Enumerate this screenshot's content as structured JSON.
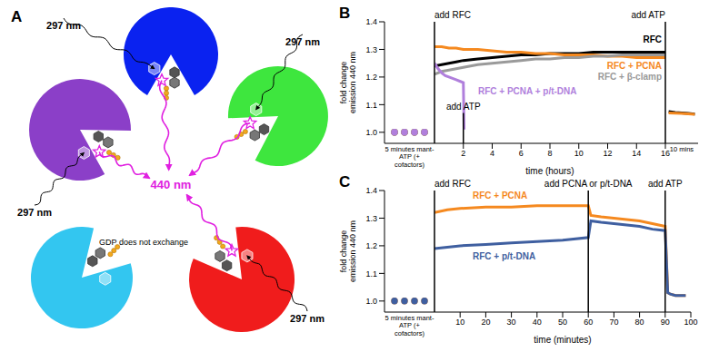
{
  "diagram": {
    "panel": "A",
    "emission": "440 nm",
    "subunits": [
      {
        "color": "#8b3fc8",
        "excitation": "297 nm"
      },
      {
        "color": "#0a22f0",
        "excitation": "297 nm"
      },
      {
        "color": "#3ee63e",
        "excitation": "297 nm"
      },
      {
        "color": "#f01c1c",
        "excitation": "297 nm"
      },
      {
        "color": "#33c6f0",
        "note": "GDP does not exchange"
      }
    ]
  },
  "chart_data": [
    {
      "panel": "B",
      "type": "line",
      "ylabel": "fold change emission 440 nm",
      "ylim": [
        0.96,
        1.4
      ],
      "yticks": [
        {
          "value": 1,
          "label": "1.0"
        },
        1.1,
        1.2,
        1.3,
        1.4
      ],
      "segments": [
        {
          "type": "scatter",
          "xlabel": "5 minutes mant-ATP (+ cofactors)",
          "xlim": [
            0,
            5
          ],
          "xticks": []
        },
        {
          "xlabel": "time (hours)",
          "xlim": [
            0,
            16
          ],
          "xticks": [
            2,
            4,
            6,
            8,
            10,
            12,
            14,
            16
          ],
          "events": [
            {
              "text": "add RFC",
              "x": 0
            },
            {
              "text": "add ATP",
              "x": 16
            }
          ],
          "annotations": [
            {
              "text": "add ATP",
              "x": 2,
              "y": 1.07
            }
          ]
        },
        {
          "xlabel": "10 mins",
          "xlim": [
            0,
            10
          ],
          "xticks": []
        }
      ],
      "series": [
        {
          "name": "RFC",
          "color": "#000000",
          "segments": [
            {
              "x": [
                1,
                2,
                3,
                4
              ],
              "values": [
                1,
                1,
                1,
                1
              ]
            },
            {
              "x": [
                0,
                0.5,
                1,
                1.5,
                2,
                3,
                4,
                5,
                6,
                7,
                8,
                9,
                10,
                11,
                12,
                13,
                14,
                15,
                16
              ],
              "values": [
                1.24,
                1.245,
                1.25,
                1.255,
                1.26,
                1.265,
                1.27,
                1.275,
                1.28,
                1.28,
                1.285,
                1.285,
                1.285,
                1.29,
                1.29,
                1.29,
                1.29,
                1.29,
                1.29
              ]
            },
            {
              "x": [
                1,
                3,
                5,
                7,
                9
              ],
              "values": [
                1.075,
                1.072,
                1.07,
                1.068,
                1.066
              ]
            }
          ]
        },
        {
          "name": "RFC + PCNA",
          "color": "#f5891f",
          "segments": [
            {
              "x": [
                1,
                2,
                3,
                4
              ],
              "values": [
                1,
                1,
                1,
                1
              ]
            },
            {
              "x": [
                0,
                0.5,
                1,
                1.5,
                2,
                3,
                4,
                5,
                6,
                7,
                8,
                9,
                10,
                11,
                12,
                13,
                14,
                15,
                16
              ],
              "values": [
                1.31,
                1.31,
                1.305,
                1.305,
                1.3,
                1.3,
                1.295,
                1.29,
                1.29,
                1.285,
                1.285,
                1.28,
                1.28,
                1.28,
                1.275,
                1.275,
                1.27,
                1.27,
                1.27
              ]
            },
            {
              "x": [
                1,
                3,
                5,
                7,
                9
              ],
              "values": [
                1.07,
                1.069,
                1.068,
                1.067,
                1.065
              ]
            }
          ]
        },
        {
          "name": "RFC + β-clamp",
          "color": "#9a9a9a",
          "segments": [
            {
              "x": [
                1,
                2,
                3,
                4
              ],
              "values": [
                1,
                1,
                1,
                1
              ]
            },
            {
              "x": [
                0,
                0.5,
                1,
                1.5,
                2,
                3,
                4,
                5,
                6,
                7,
                8,
                9,
                10,
                11,
                12,
                13,
                14,
                15,
                16
              ],
              "values": [
                1.21,
                1.22,
                1.225,
                1.23,
                1.235,
                1.245,
                1.25,
                1.255,
                1.26,
                1.265,
                1.265,
                1.27,
                1.27,
                1.275,
                1.275,
                1.28,
                1.28,
                1.28,
                1.28
              ]
            },
            {
              "x": [],
              "values": []
            }
          ]
        },
        {
          "name": "RFC + PCNA + p/t-DNA",
          "color": "#b07fdc",
          "segments": [
            {
              "x": [
                1,
                2,
                3,
                4
              ],
              "values": [
                1,
                1,
                1,
                1
              ]
            },
            {
              "x": [
                0,
                0.25,
                0.5,
                0.75,
                1,
                1.25,
                1.5,
                1.75,
                2,
                2.05
              ],
              "values": [
                1.25,
                1.23,
                1.215,
                1.205,
                1.2,
                1.195,
                1.19,
                1.185,
                1.18,
                1.01
              ]
            },
            {
              "x": [],
              "values": []
            }
          ]
        }
      ]
    },
    {
      "panel": "C",
      "type": "line",
      "ylabel": "fold change emission 440 nm",
      "ylim": [
        0.96,
        1.4
      ],
      "yticks": [
        {
          "value": 1,
          "label": "1.0"
        },
        1.1,
        1.2,
        1.3,
        1.4
      ],
      "segments": [
        {
          "type": "scatter",
          "xlabel": "5 minutes mant-ATP (+ cofactors)",
          "xlim": [
            0,
            5
          ],
          "xticks": []
        },
        {
          "xlabel": "time (minutes)",
          "xlim": [
            0,
            100
          ],
          "xticks": [
            10,
            20,
            30,
            40,
            50,
            60,
            70,
            80,
            90,
            100
          ],
          "events": [
            {
              "text": "add RFC",
              "x": 0
            },
            {
              "text": "add PCNA or p/t-DNA",
              "x": 60
            },
            {
              "text": "add ATP",
              "x": 90
            }
          ]
        }
      ],
      "series": [
        {
          "name": "RFC + PCNA",
          "color": "#f5891f",
          "segments": [
            {
              "x": [
                1,
                2,
                3,
                4
              ],
              "values": [
                1,
                1,
                1,
                1
              ]
            },
            {
              "x": [
                0,
                5,
                10,
                20,
                30,
                40,
                50,
                60,
                61,
                65,
                70,
                75,
                80,
                85,
                90,
                91,
                92,
                94,
                96,
                98
              ],
              "values": [
                1.32,
                1.33,
                1.335,
                1.34,
                1.34,
                1.345,
                1.345,
                1.345,
                1.31,
                1.305,
                1.3,
                1.295,
                1.29,
                1.28,
                1.27,
                1.03,
                1.025,
                1.02,
                1.02,
                1.02
              ]
            }
          ]
        },
        {
          "name": "RFC + p/t-DNA",
          "color": "#3f5fa0",
          "segments": [
            {
              "x": [
                1,
                2,
                3,
                4
              ],
              "values": [
                1,
                1,
                1,
                1
              ]
            },
            {
              "x": [
                0,
                5,
                10,
                20,
                30,
                40,
                50,
                60,
                61,
                65,
                70,
                75,
                80,
                85,
                90,
                91,
                92,
                94,
                96,
                98
              ],
              "values": [
                1.19,
                1.195,
                1.2,
                1.205,
                1.21,
                1.215,
                1.22,
                1.23,
                1.29,
                1.285,
                1.28,
                1.275,
                1.27,
                1.26,
                1.255,
                1.03,
                1.025,
                1.02,
                1.02,
                1.02
              ]
            }
          ]
        }
      ]
    }
  ]
}
